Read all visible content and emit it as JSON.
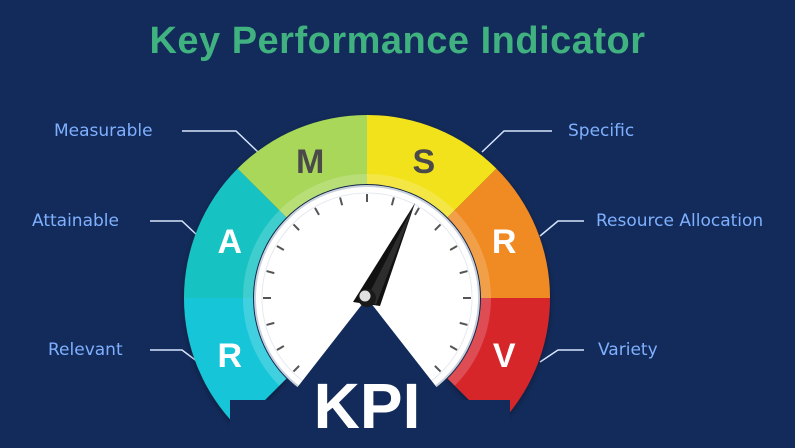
{
  "title": "Key Performance Indicator",
  "center_label": "KPI",
  "segments": [
    {
      "letter": "R",
      "label": "Relevant",
      "color": "#18c6d8"
    },
    {
      "letter": "A",
      "label": "Attainable",
      "color": "#16c3c2"
    },
    {
      "letter": "M",
      "label": "Measurable",
      "color": "#a9d75a"
    },
    {
      "letter": "S",
      "label": "Specific",
      "color": "#f2e21b"
    },
    {
      "letter": "R",
      "label": "Resource Allocation",
      "color": "#f08a21"
    },
    {
      "letter": "V",
      "label": "Variety",
      "color": "#d6282c"
    }
  ],
  "colors": {
    "background": "#132b5a",
    "title": "#3fb27f",
    "label": "#7fb0ff",
    "needle": "#111111"
  }
}
